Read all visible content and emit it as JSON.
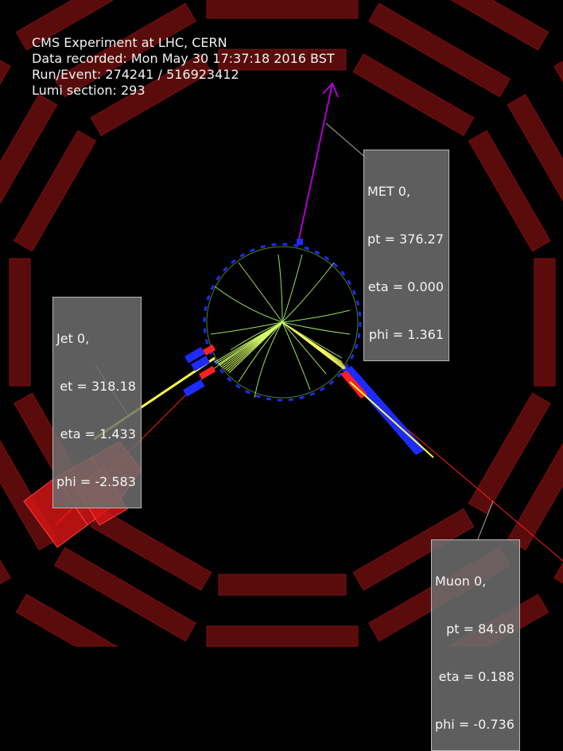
{
  "header": {
    "line1": "CMS Experiment at LHC, CERN",
    "line2": "Data recorded: Mon May 30 17:37:18 2016 BST",
    "line3": "Run/Event: 274241 / 516923412",
    "line4": "Lumi section: 293"
  },
  "labels": {
    "met": {
      "title": "MET 0,",
      "pt": "pt = 376.27",
      "eta": "eta = 0.000",
      "phi": "phi = 1.361"
    },
    "jet": {
      "title": "Jet 0,",
      "et": "et = 318.18",
      "eta": "eta = 1.433",
      "phi": "phi = -2.583"
    },
    "muon": {
      "title": "Muon 0,",
      "pt": "pt = 84.08",
      "eta": "eta = 0.188",
      "phi": "phi = -0.736"
    }
  },
  "colors": {
    "background": "#000000",
    "muon_chamber": "#5a0b0b",
    "muon_chamber_edge": "#7a1010",
    "tracker_outline": "#4a8a2a",
    "track": "#9be05a",
    "hcal_blue": "#1e2bff",
    "ecal_red": "#ff2020",
    "jet_yellow": "#ffff44",
    "met_arrow": "#b000d0",
    "muon_line": "#ff1a1a",
    "label_bg": "#6e6e6e"
  }
}
